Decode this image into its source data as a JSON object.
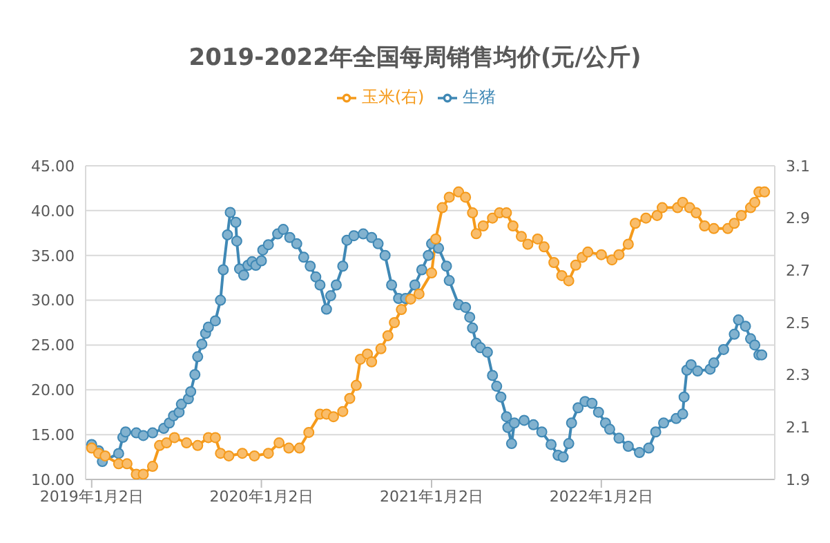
{
  "chart_data": {
    "type": "line",
    "title": "2019-2022年全国每周销售均价(元/公斤)",
    "legend": "top",
    "grid": "y",
    "marker": "circle",
    "xlim": [
      "2018-12-20",
      "2023-01-10"
    ],
    "xticks": [
      {
        "value": "2019-01-02",
        "label": "2019年1月2日"
      },
      {
        "value": "2020-01-02",
        "label": "2020年1月2日"
      },
      {
        "value": "2021-01-02",
        "label": "2021年1月2日"
      },
      {
        "value": "2022-01-02",
        "label": "2022年1月2日"
      }
    ],
    "ylim": [
      10,
      45
    ],
    "yticks": [
      {
        "value": 10,
        "label": "10.00"
      },
      {
        "value": 15,
        "label": "15.00"
      },
      {
        "value": 20,
        "label": "20.00"
      },
      {
        "value": 25,
        "label": "25.00"
      },
      {
        "value": 30,
        "label": "30.00"
      },
      {
        "value": 35,
        "label": "35.00"
      },
      {
        "value": 40,
        "label": "40.00"
      },
      {
        "value": 45,
        "label": "45.00"
      }
    ],
    "y2lim": [
      1.9,
      3.1
    ],
    "y2ticks": [
      1.9,
      2.1,
      2.3,
      2.5,
      2.7,
      2.9,
      3.1
    ],
    "series": [
      {
        "name": "生猪",
        "color": "#3f88b5",
        "x": [
          "2019-01-02",
          "2019-01-17",
          "2019-01-25",
          "2019-03-01",
          "2019-03-10",
          "2019-03-16",
          "2019-04-08",
          "2019-04-23",
          "2019-05-13",
          "2019-06-06",
          "2019-06-18",
          "2019-06-27",
          "2019-07-09",
          "2019-07-14",
          "2019-07-29",
          "2019-08-03",
          "2019-08-12",
          "2019-08-18",
          "2019-08-27",
          "2019-09-04",
          "2019-09-10",
          "2019-09-25",
          "2019-10-06",
          "2019-10-12",
          "2019-10-21",
          "2019-10-27",
          "2019-11-08",
          "2019-11-10",
          "2019-11-16",
          "2019-11-25",
          "2019-12-04",
          "2019-12-13",
          "2019-12-21",
          "2020-01-02",
          "2020-01-05",
          "2020-01-17",
          "2020-02-06",
          "2020-02-18",
          "2020-03-03",
          "2020-03-18",
          "2020-04-02",
          "2020-04-16",
          "2020-04-28",
          "2020-05-07",
          "2020-05-21",
          "2020-05-30",
          "2020-06-11",
          "2020-06-25",
          "2020-07-04",
          "2020-07-19",
          "2020-08-08",
          "2020-08-26",
          "2020-09-09",
          "2020-09-24",
          "2020-10-08",
          "2020-10-23",
          "2020-11-07",
          "2020-11-27",
          "2020-12-12",
          "2020-12-26",
          "2021-01-02",
          "2021-01-17",
          "2021-02-03",
          "2021-02-09",
          "2021-03-01",
          "2021-03-16",
          "2021-03-25",
          "2021-03-31",
          "2021-04-08",
          "2021-04-17",
          "2021-05-02",
          "2021-05-13",
          "2021-05-22",
          "2021-05-31",
          "2021-06-12",
          "2021-06-15",
          "2021-06-23",
          "2021-06-29",
          "2021-07-20",
          "2021-08-09",
          "2021-08-27",
          "2021-09-16",
          "2021-10-01",
          "2021-10-12",
          "2021-10-24",
          "2021-10-30",
          "2021-11-13",
          "2021-11-28",
          "2021-12-13",
          "2021-12-27",
          "2022-01-11",
          "2022-01-20",
          "2022-02-09",
          "2022-03-01",
          "2022-03-25",
          "2022-04-14",
          "2022-04-29",
          "2022-05-16",
          "2022-06-12",
          "2022-06-26",
          "2022-06-29",
          "2022-07-05",
          "2022-07-14",
          "2022-07-28",
          "2022-08-24",
          "2022-09-01",
          "2022-09-22",
          "2022-10-15",
          "2022-10-24",
          "2022-11-08",
          "2022-11-19",
          "2022-11-28",
          "2022-12-07",
          "2022-12-13"
        ],
        "values": [
          13.9,
          13.2,
          12.0,
          12.9,
          14.7,
          15.3,
          15.2,
          14.9,
          15.2,
          15.7,
          16.3,
          17.1,
          17.5,
          18.4,
          19.0,
          19.8,
          21.7,
          23.7,
          25.1,
          26.3,
          27.0,
          27.7,
          30.0,
          33.4,
          37.3,
          39.8,
          38.7,
          36.6,
          33.5,
          32.8,
          33.9,
          34.3,
          33.9,
          34.4,
          35.6,
          36.2,
          37.4,
          37.9,
          37.0,
          36.3,
          34.8,
          33.8,
          32.6,
          31.7,
          29.0,
          30.5,
          31.7,
          33.8,
          36.7,
          37.2,
          37.4,
          37.0,
          36.3,
          35.0,
          31.7,
          30.2,
          30.2,
          31.7,
          33.4,
          35.0,
          36.3,
          35.8,
          33.8,
          32.2,
          29.5,
          29.2,
          28.1,
          26.9,
          25.2,
          24.7,
          24.2,
          21.6,
          20.4,
          19.2,
          17.0,
          15.8,
          14.0,
          16.3,
          16.6,
          16.1,
          15.3,
          13.9,
          12.7,
          12.5,
          14.0,
          16.3,
          18.0,
          18.7,
          18.5,
          17.5,
          16.3,
          15.6,
          14.6,
          13.7,
          13.0,
          13.5,
          15.3,
          16.3,
          16.8,
          17.3,
          19.2,
          22.2,
          22.8,
          22.1,
          22.3,
          23.0,
          24.5,
          26.2,
          27.8,
          27.1,
          25.7,
          25.0,
          23.9,
          23.9
        ]
      },
      {
        "name": "玉米(右)",
        "color": "#f59a1b",
        "axis": "y2",
        "x": [
          "2019-01-02",
          "2019-01-17",
          "2019-01-31",
          "2019-03-01",
          "2019-03-19",
          "2019-04-08",
          "2019-04-23",
          "2019-05-13",
          "2019-05-28",
          "2019-06-12",
          "2019-06-29",
          "2019-07-25",
          "2019-08-18",
          "2019-09-10",
          "2019-09-25",
          "2019-10-06",
          "2019-10-24",
          "2019-11-22",
          "2019-12-18",
          "2020-01-17",
          "2020-02-09",
          "2020-03-01",
          "2020-03-24",
          "2020-04-13",
          "2020-05-07",
          "2020-05-21",
          "2020-06-05",
          "2020-06-25",
          "2020-07-10",
          "2020-07-24",
          "2020-08-02",
          "2020-08-17",
          "2020-08-26",
          "2020-09-15",
          "2020-09-30",
          "2020-10-14",
          "2020-10-29",
          "2020-11-18",
          "2020-12-06",
          "2021-01-02",
          "2021-01-11",
          "2021-01-25",
          "2021-02-09",
          "2021-03-01",
          "2021-03-16",
          "2021-03-31",
          "2021-04-08",
          "2021-04-23",
          "2021-05-13",
          "2021-05-28",
          "2021-06-12",
          "2021-06-26",
          "2021-07-14",
          "2021-07-28",
          "2021-08-18",
          "2021-09-01",
          "2021-09-22",
          "2021-10-09",
          "2021-10-24",
          "2021-11-08",
          "2021-11-22",
          "2021-12-04",
          "2022-01-02",
          "2022-01-25",
          "2022-02-09",
          "2022-03-01",
          "2022-03-16",
          "2022-04-08",
          "2022-05-02",
          "2022-05-13",
          "2022-06-15",
          "2022-06-26",
          "2022-07-11",
          "2022-07-25",
          "2022-08-12",
          "2022-09-01",
          "2022-10-01",
          "2022-10-15",
          "2022-10-30",
          "2022-11-19",
          "2022-11-28",
          "2022-12-07",
          "2022-12-19"
        ],
        "values": [
          2.02,
          2.0,
          1.99,
          1.96,
          1.96,
          1.92,
          1.92,
          1.95,
          2.03,
          2.04,
          2.06,
          2.04,
          2.03,
          2.06,
          2.06,
          2.0,
          1.99,
          2.0,
          1.99,
          2.0,
          2.04,
          2.02,
          2.02,
          2.08,
          2.15,
          2.15,
          2.14,
          2.16,
          2.21,
          2.26,
          2.36,
          2.38,
          2.35,
          2.4,
          2.45,
          2.5,
          2.55,
          2.59,
          2.61,
          2.69,
          2.82,
          2.94,
          2.98,
          3.0,
          2.98,
          2.92,
          2.84,
          2.87,
          2.9,
          2.92,
          2.92,
          2.87,
          2.83,
          2.8,
          2.82,
          2.79,
          2.73,
          2.68,
          2.66,
          2.72,
          2.75,
          2.77,
          2.76,
          2.74,
          2.76,
          2.8,
          2.88,
          2.9,
          2.91,
          2.94,
          2.94,
          2.96,
          2.94,
          2.92,
          2.87,
          2.86,
          2.86,
          2.88,
          2.91,
          2.94,
          2.96,
          3.0,
          3.0
        ]
      }
    ]
  }
}
